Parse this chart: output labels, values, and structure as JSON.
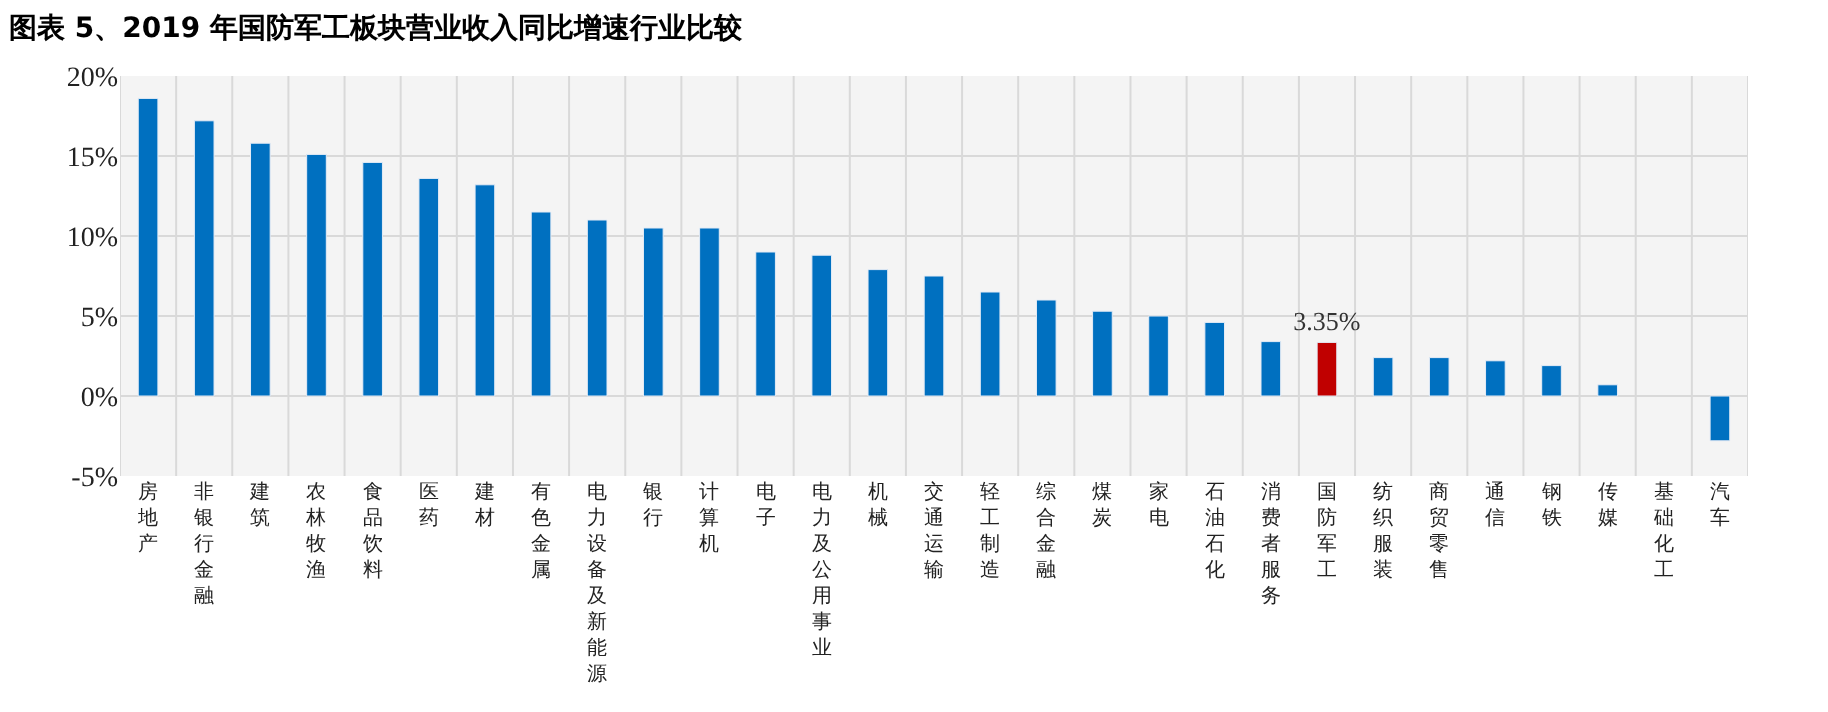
{
  "chart_data": {
    "type": "bar",
    "title": "图表 5、2019 年国防军工板块营业收入同比增速行业比较",
    "categories": [
      "房地产",
      "非银行金融",
      "建筑",
      "农林牧渔",
      "食品饮料",
      "医药",
      "建材",
      "有色金属",
      "电力设备及新能源",
      "银行",
      "计算机",
      "电子",
      "电力及公用事业",
      "机械",
      "交通运输",
      "轻工制造",
      "综合金融",
      "煤炭",
      "家电",
      "石油石化",
      "消费者服务",
      "国防军工",
      "纺织服装",
      "商贸零售",
      "通信",
      "钢铁",
      "传媒",
      "基础化工",
      "汽车"
    ],
    "values": [
      18.6,
      17.2,
      15.8,
      15.1,
      14.6,
      13.6,
      13.2,
      11.5,
      11.0,
      10.5,
      10.5,
      9.0,
      8.8,
      7.9,
      7.5,
      6.5,
      6.0,
      5.3,
      5.0,
      4.6,
      3.4,
      3.35,
      2.4,
      2.4,
      2.2,
      1.9,
      0.7,
      null,
      -2.8
    ],
    "colors": [
      "#0070c0",
      "#0070c0",
      "#0070c0",
      "#0070c0",
      "#0070c0",
      "#0070c0",
      "#0070c0",
      "#0070c0",
      "#0070c0",
      "#0070c0",
      "#0070c0",
      "#0070c0",
      "#0070c0",
      "#0070c0",
      "#0070c0",
      "#0070c0",
      "#0070c0",
      "#0070c0",
      "#0070c0",
      "#0070c0",
      "#0070c0",
      "#c00000",
      "#0070c0",
      "#0070c0",
      "#0070c0",
      "#0070c0",
      "#0070c0",
      "#0070c0",
      "#0070c0"
    ],
    "value_labels": [
      null,
      null,
      null,
      null,
      null,
      null,
      null,
      null,
      null,
      null,
      null,
      null,
      null,
      null,
      null,
      null,
      null,
      null,
      null,
      null,
      null,
      "3.35%",
      null,
      null,
      null,
      null,
      null,
      null,
      null
    ],
    "ylim": [
      -5,
      20
    ],
    "yticks": [
      {
        "value": -5,
        "label": "-5%"
      },
      {
        "value": 0,
        "label": "0%"
      },
      {
        "value": 5,
        "label": "5%"
      },
      {
        "value": 10,
        "label": "10%"
      },
      {
        "value": 15,
        "label": "15%"
      },
      {
        "value": 20,
        "label": "20%"
      }
    ],
    "grid": true,
    "legend": false
  }
}
